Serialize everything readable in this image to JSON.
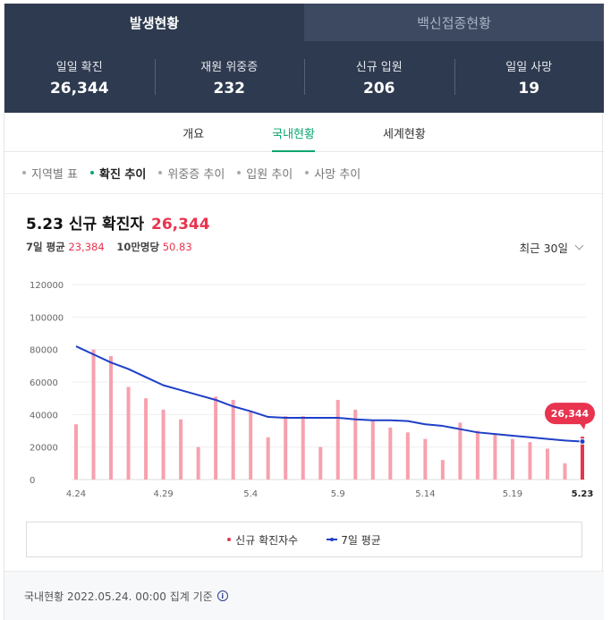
{
  "header": {
    "tabs": [
      {
        "label": "발생현황",
        "active": true
      },
      {
        "label": "백신접종현황",
        "active": false
      }
    ],
    "stats": [
      {
        "label": "일일 확진",
        "value": "26,344"
      },
      {
        "label": "재원 위중증",
        "value": "232"
      },
      {
        "label": "신규 입원",
        "value": "206"
      },
      {
        "label": "일일 사망",
        "value": "19"
      }
    ]
  },
  "subnav": [
    "개요",
    "국내현황",
    "세계현황"
  ],
  "filters": [
    "지역별 표",
    "확진 추이",
    "위중증 추이",
    "입원 추이",
    "사망 추이"
  ],
  "summary": {
    "title": "5.23 신규 확진자",
    "value": "26,344",
    "avg_label": "7일 평균",
    "avg_value": "23,384",
    "per100k_label": "10만명당",
    "per100k_value": "50.83",
    "range_label": "최근 30일"
  },
  "chart_data": {
    "type": "bar",
    "x": [
      "4.24",
      "4.25",
      "4.26",
      "4.27",
      "4.28",
      "4.29",
      "4.30",
      "5.1",
      "5.2",
      "5.3",
      "5.4",
      "5.5",
      "5.6",
      "5.7",
      "5.8",
      "5.9",
      "5.10",
      "5.11",
      "5.12",
      "5.13",
      "5.14",
      "5.15",
      "5.16",
      "5.17",
      "5.18",
      "5.19",
      "5.20",
      "5.21",
      "5.22",
      "5.23"
    ],
    "x_tick_labels": [
      "4.24",
      "4.29",
      "5.4",
      "5.9",
      "5.14",
      "5.19",
      "5.23"
    ],
    "series": [
      {
        "name": "신규 확진자수",
        "type": "bar",
        "color": "#f7a1ae",
        "values": [
          34000,
          80000,
          76000,
          57000,
          50000,
          43000,
          37000,
          20000,
          51000,
          49000,
          42000,
          26000,
          39000,
          39000,
          20000,
          49000,
          43000,
          36000,
          32000,
          29000,
          25000,
          12000,
          35000,
          30000,
          28000,
          25000,
          23000,
          19000,
          10000,
          26344
        ]
      },
      {
        "name": "7일 평균",
        "type": "line",
        "color": "#1f3fc7",
        "values": [
          82000,
          77000,
          72000,
          68000,
          63000,
          58000,
          55000,
          52000,
          49000,
          45000,
          42000,
          38500,
          38000,
          38000,
          38000,
          38000,
          37000,
          36500,
          36500,
          36000,
          34000,
          33000,
          31000,
          29000,
          28000,
          27000,
          26000,
          25000,
          24000,
          23384
        ]
      }
    ],
    "highlight": {
      "index": 29,
      "label": "26,344",
      "color": "#e8344e"
    },
    "y_ticks": [
      0,
      20000,
      40000,
      60000,
      80000,
      100000,
      120000
    ],
    "ylim": [
      0,
      120000
    ],
    "grid": true,
    "legend": "bottom"
  },
  "legend": {
    "bar_label": "신규 확진자수",
    "line_label": "7일 평균"
  },
  "footer": {
    "text": "국내현황 2022.05.24. 00:00 집계 기준",
    "info_symbol": "i"
  }
}
